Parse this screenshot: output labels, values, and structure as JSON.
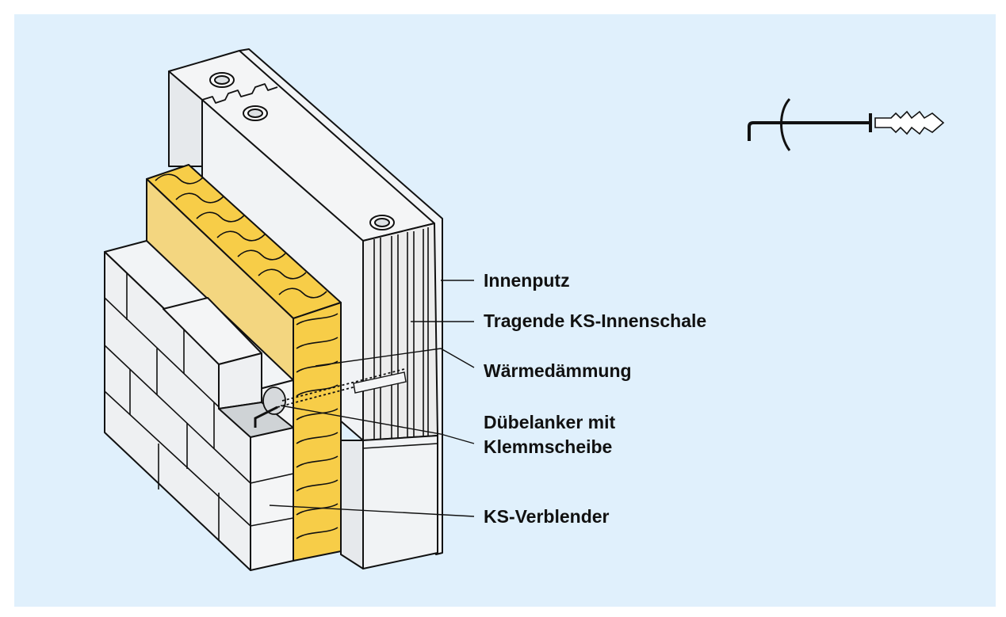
{
  "figure": {
    "background_color": "#e0f0fc",
    "insulation_color": "#f7cd48",
    "labels": {
      "innenputz": "Innenputz",
      "innenschale": "Tragende KS-Innenschale",
      "daemmung": "Wärmedämmung",
      "anker_line1": "Dübelanker mit",
      "anker_line2": "Klemmscheibe",
      "verblender": "KS-Verblender"
    },
    "icons": [
      "anchor-icon"
    ]
  }
}
